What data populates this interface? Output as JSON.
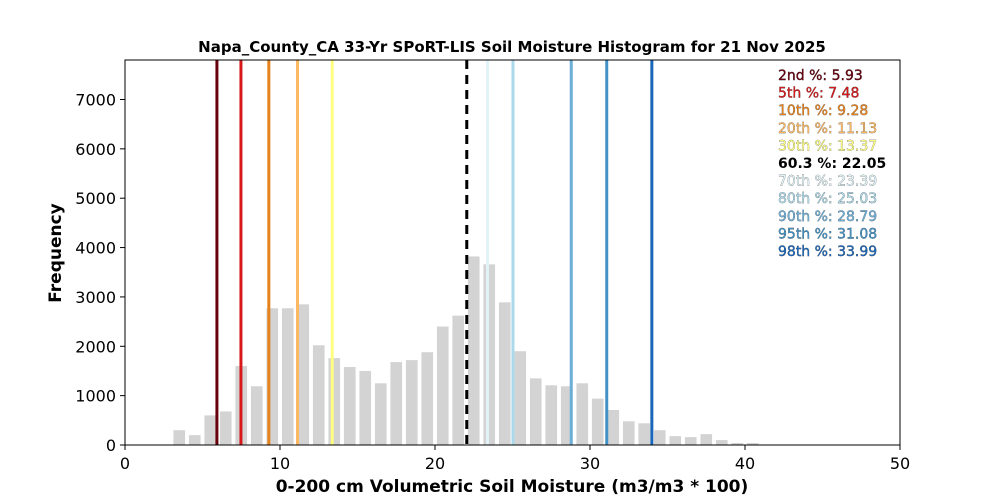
{
  "chart_data": {
    "type": "bar",
    "title": "Napa_County_CA 33-Yr SPoRT-LIS Soil Moisture Histogram for 21 Nov 2025",
    "xlabel": "0-200 cm Volumetric Soil Moisture (m3/m3 * 100)",
    "ylabel": "Frequency",
    "xlim": [
      0,
      50
    ],
    "ylim": [
      0,
      7800
    ],
    "xticks": [
      "0",
      "10",
      "20",
      "30",
      "40",
      "50"
    ],
    "yticks": [
      "0",
      "1000",
      "2000",
      "3000",
      "4000",
      "5000",
      "6000",
      "7000"
    ],
    "bar_color": "#d3d3d3",
    "bins": [
      {
        "x": 3.5,
        "value": 300
      },
      {
        "x": 4.5,
        "value": 200
      },
      {
        "x": 5.5,
        "value": 600
      },
      {
        "x": 6.5,
        "value": 680
      },
      {
        "x": 7.5,
        "value": 1600
      },
      {
        "x": 8.5,
        "value": 1190
      },
      {
        "x": 9.5,
        "value": 2770
      },
      {
        "x": 10.5,
        "value": 2770
      },
      {
        "x": 11.5,
        "value": 2850
      },
      {
        "x": 12.5,
        "value": 2020
      },
      {
        "x": 13.5,
        "value": 1760
      },
      {
        "x": 14.5,
        "value": 1580
      },
      {
        "x": 15.5,
        "value": 1500
      },
      {
        "x": 16.5,
        "value": 1250
      },
      {
        "x": 17.5,
        "value": 1680
      },
      {
        "x": 18.5,
        "value": 1720
      },
      {
        "x": 19.5,
        "value": 1880
      },
      {
        "x": 20.5,
        "value": 2400
      },
      {
        "x": 21.5,
        "value": 2620
      },
      {
        "x": 22.5,
        "value": 3820
      },
      {
        "x": 23.5,
        "value": 3660
      },
      {
        "x": 24.5,
        "value": 2890
      },
      {
        "x": 25.5,
        "value": 1900
      },
      {
        "x": 26.5,
        "value": 1350
      },
      {
        "x": 27.5,
        "value": 1210
      },
      {
        "x": 28.5,
        "value": 1190
      },
      {
        "x": 29.5,
        "value": 1250
      },
      {
        "x": 30.5,
        "value": 940
      },
      {
        "x": 31.5,
        "value": 710
      },
      {
        "x": 32.5,
        "value": 480
      },
      {
        "x": 33.5,
        "value": 440
      },
      {
        "x": 34.5,
        "value": 300
      },
      {
        "x": 35.5,
        "value": 180
      },
      {
        "x": 36.5,
        "value": 160
      },
      {
        "x": 37.5,
        "value": 220
      },
      {
        "x": 38.5,
        "value": 100
      },
      {
        "x": 39.5,
        "value": 40
      },
      {
        "x": 40.5,
        "value": 40
      }
    ],
    "percentiles": [
      {
        "label": "2nd %: 5.93",
        "value": 5.93,
        "color": "#67000d",
        "dashed": false
      },
      {
        "label": "5th %: 7.48",
        "value": 7.48,
        "color": "#d7191c",
        "dashed": false
      },
      {
        "label": "10th %: 9.28",
        "value": 9.28,
        "color": "#e6821e",
        "dashed": false
      },
      {
        "label": "20th %: 11.13",
        "value": 11.13,
        "color": "#fdb863",
        "dashed": false
      },
      {
        "label": "30th %: 13.37",
        "value": 13.37,
        "color": "#ffff80",
        "dashed": false
      },
      {
        "label": "60.3 %: 22.05",
        "value": 22.05,
        "color": "#000000",
        "dashed": true
      },
      {
        "label": "70th %: 23.39",
        "value": 23.39,
        "color": "#e0f3f8",
        "dashed": false
      },
      {
        "label": "80th %: 25.03",
        "value": 25.03,
        "color": "#abd9e9",
        "dashed": false
      },
      {
        "label": "90th %: 28.79",
        "value": 28.79,
        "color": "#6baed6",
        "dashed": false
      },
      {
        "label": "95th %: 31.08",
        "value": 31.08,
        "color": "#4292c6",
        "dashed": false
      },
      {
        "label": "98th %: 33.99",
        "value": 33.99,
        "color": "#1a66b8",
        "dashed": false
      }
    ],
    "legend_position": "top-right",
    "grid": false
  }
}
